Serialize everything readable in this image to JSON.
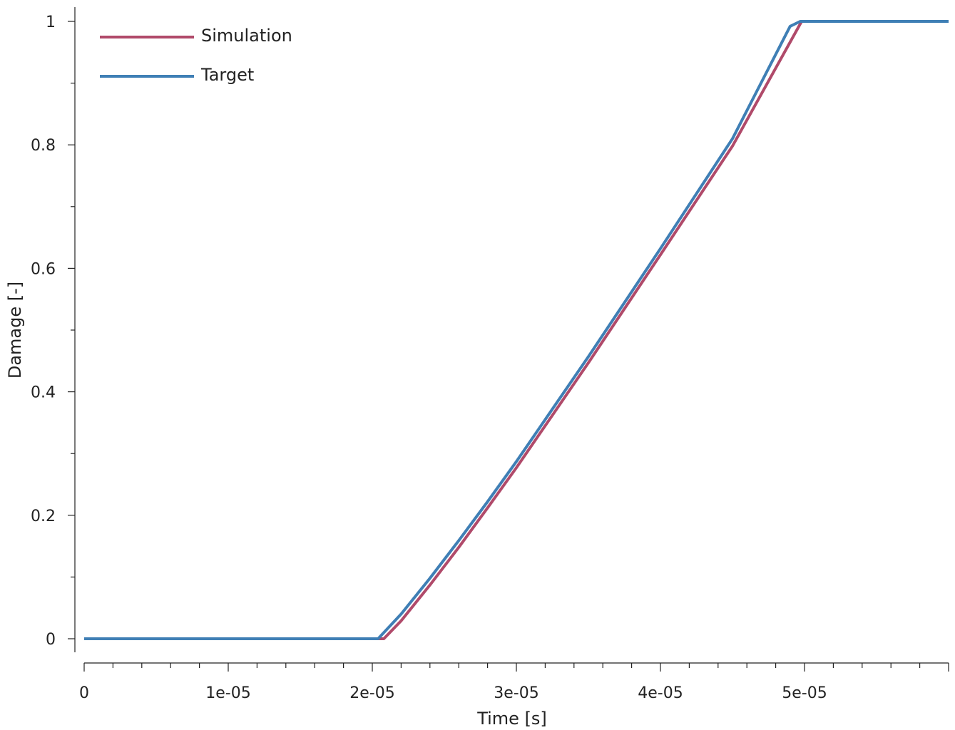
{
  "chart_data": {
    "type": "line",
    "xlabel": "Time [s]",
    "ylabel": "Damage [-]",
    "xlim": [
      0,
      6e-05
    ],
    "ylim": [
      0,
      1
    ],
    "x_ticks": [
      0,
      1e-05,
      2e-05,
      3e-05,
      4e-05,
      5e-05
    ],
    "x_tick_labels": [
      "0",
      "1e-05",
      "2e-05",
      "3e-05",
      "4e-05",
      "5e-05"
    ],
    "y_ticks": [
      0,
      0.2,
      0.4,
      0.6,
      0.8,
      1
    ],
    "y_tick_labels": [
      "0",
      "0.2",
      "0.4",
      "0.6",
      "0.8",
      "1"
    ],
    "grid": false,
    "legend_position": "top-left",
    "series": [
      {
        "name": "Simulation",
        "color": "#b04a6a",
        "x": [
          0,
          1e-05,
          2.08e-05,
          2.2e-05,
          2.4e-05,
          2.6e-05,
          2.8e-05,
          3e-05,
          3.5e-05,
          4e-05,
          4.5e-05,
          4.98e-05,
          5.2e-05,
          6e-05
        ],
        "y": [
          0,
          0,
          0,
          0.029,
          0.087,
          0.148,
          0.212,
          0.277,
          0.447,
          0.622,
          0.798,
          1.0,
          1.0,
          1.0
        ]
      },
      {
        "name": "Target",
        "color": "#3f7fb5",
        "x": [
          0,
          1e-05,
          2.04e-05,
          2.2e-05,
          2.4e-05,
          2.6e-05,
          2.8e-05,
          3e-05,
          3.5e-05,
          4e-05,
          4.5e-05,
          4.9e-05,
          4.97e-05,
          5.2e-05,
          6e-05
        ],
        "y": [
          0,
          0,
          0,
          0.04,
          0.098,
          0.159,
          0.222,
          0.287,
          0.457,
          0.632,
          0.81,
          0.992,
          1.0,
          1.0,
          1.0
        ]
      }
    ]
  }
}
